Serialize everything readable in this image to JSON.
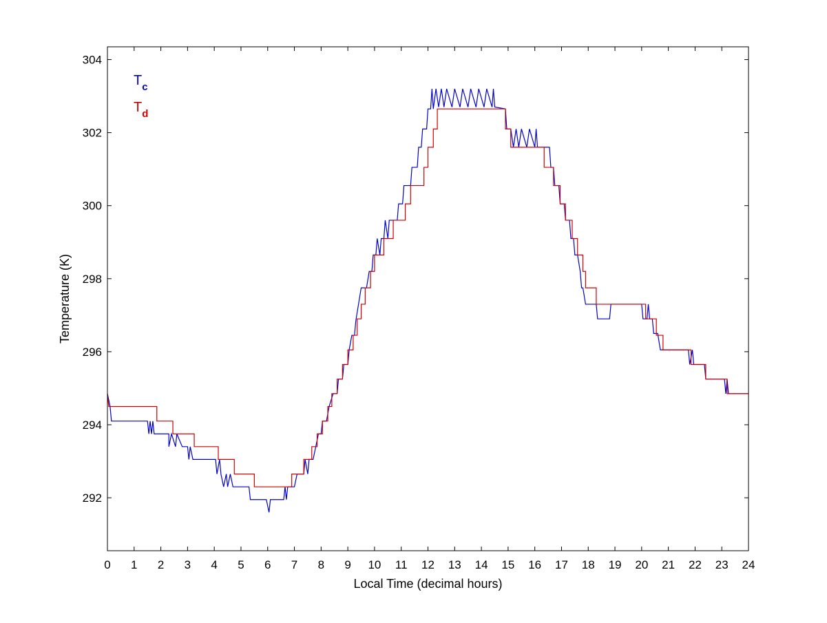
{
  "chart_data": {
    "type": "line",
    "xlabel": "Local Time (decimal hours)",
    "ylabel": "Temperature (K)",
    "xlim": [
      0,
      24
    ],
    "ylim": [
      290.55,
      304.35
    ],
    "x_ticks": [
      0,
      1,
      2,
      3,
      4,
      5,
      6,
      7,
      8,
      9,
      10,
      11,
      12,
      13,
      14,
      15,
      16,
      17,
      18,
      19,
      20,
      21,
      22,
      23,
      24
    ],
    "y_ticks": [
      292,
      294,
      296,
      298,
      300,
      302,
      304
    ],
    "grid": false,
    "legend_position": "top-left",
    "series": [
      {
        "name": "T",
        "subscript": "c",
        "color": "#0000cc",
        "style": "stepped, noisy",
        "points": [
          [
            0,
            294.85
          ],
          [
            0.1,
            294.5
          ],
          [
            0.15,
            294.1
          ],
          [
            1.5,
            294.1
          ],
          [
            1.55,
            293.75
          ],
          [
            1.6,
            294.1
          ],
          [
            1.65,
            293.75
          ],
          [
            1.7,
            294.1
          ],
          [
            1.75,
            293.75
          ],
          [
            2.3,
            293.75
          ],
          [
            2.3,
            293.4
          ],
          [
            2.4,
            293.75
          ],
          [
            2.55,
            293.4
          ],
          [
            2.6,
            293.75
          ],
          [
            2.8,
            293.4
          ],
          [
            3.0,
            293.4
          ],
          [
            3.05,
            293.05
          ],
          [
            3.1,
            293.4
          ],
          [
            3.2,
            293.05
          ],
          [
            4.05,
            293.05
          ],
          [
            4.1,
            292.65
          ],
          [
            4.2,
            293.05
          ],
          [
            4.25,
            292.65
          ],
          [
            4.35,
            292.3
          ],
          [
            4.45,
            292.65
          ],
          [
            4.5,
            292.3
          ],
          [
            4.6,
            292.65
          ],
          [
            4.7,
            292.3
          ],
          [
            5.3,
            292.3
          ],
          [
            5.35,
            291.95
          ],
          [
            5.95,
            291.95
          ],
          [
            6.05,
            291.6
          ],
          [
            6.1,
            291.95
          ],
          [
            6.6,
            291.95
          ],
          [
            6.65,
            292.3
          ],
          [
            6.7,
            291.95
          ],
          [
            6.75,
            292.3
          ],
          [
            7.0,
            292.3
          ],
          [
            7.1,
            292.65
          ],
          [
            7.35,
            292.65
          ],
          [
            7.4,
            293.05
          ],
          [
            7.5,
            292.65
          ],
          [
            7.55,
            293.05
          ],
          [
            7.7,
            293.05
          ],
          [
            7.8,
            293.4
          ],
          [
            7.9,
            293.75
          ],
          [
            8.0,
            293.75
          ],
          [
            8.05,
            294.1
          ],
          [
            8.2,
            294.1
          ],
          [
            8.3,
            294.5
          ],
          [
            8.45,
            294.85
          ],
          [
            8.6,
            294.85
          ],
          [
            8.65,
            295.25
          ],
          [
            8.8,
            295.25
          ],
          [
            8.85,
            295.65
          ],
          [
            9.0,
            295.65
          ],
          [
            9.05,
            296.05
          ],
          [
            9.15,
            296.45
          ],
          [
            9.25,
            296.45
          ],
          [
            9.3,
            296.85
          ],
          [
            9.4,
            297.3
          ],
          [
            9.5,
            297.75
          ],
          [
            9.7,
            297.75
          ],
          [
            9.8,
            298.2
          ],
          [
            9.9,
            298.2
          ],
          [
            9.95,
            298.65
          ],
          [
            10.05,
            298.65
          ],
          [
            10.1,
            299.1
          ],
          [
            10.2,
            298.65
          ],
          [
            10.25,
            299.1
          ],
          [
            10.35,
            299.1
          ],
          [
            10.4,
            299.6
          ],
          [
            10.5,
            299.1
          ],
          [
            10.55,
            299.6
          ],
          [
            10.85,
            299.6
          ],
          [
            10.9,
            300.05
          ],
          [
            11.05,
            300.05
          ],
          [
            11.1,
            300.55
          ],
          [
            11.35,
            300.55
          ],
          [
            11.4,
            301.05
          ],
          [
            11.6,
            301.05
          ],
          [
            11.65,
            301.6
          ],
          [
            11.75,
            301.6
          ],
          [
            11.8,
            302.1
          ],
          [
            11.95,
            302.1
          ],
          [
            12.0,
            302.65
          ],
          [
            12.1,
            302.65
          ],
          [
            12.15,
            303.2
          ],
          [
            12.2,
            302.65
          ],
          [
            12.3,
            303.2
          ],
          [
            12.4,
            302.7
          ],
          [
            12.5,
            303.2
          ],
          [
            12.6,
            302.7
          ],
          [
            12.7,
            303.2
          ],
          [
            12.9,
            302.7
          ],
          [
            13.0,
            303.2
          ],
          [
            13.2,
            302.7
          ],
          [
            13.3,
            303.2
          ],
          [
            13.5,
            302.7
          ],
          [
            13.6,
            303.2
          ],
          [
            13.8,
            302.7
          ],
          [
            13.9,
            303.2
          ],
          [
            14.1,
            302.7
          ],
          [
            14.2,
            303.2
          ],
          [
            14.4,
            302.7
          ],
          [
            14.45,
            303.2
          ],
          [
            14.5,
            302.7
          ],
          [
            14.9,
            302.65
          ],
          [
            14.95,
            302.1
          ],
          [
            15.1,
            302.1
          ],
          [
            15.2,
            301.6
          ],
          [
            15.3,
            302.1
          ],
          [
            15.4,
            301.6
          ],
          [
            15.5,
            302.1
          ],
          [
            15.7,
            301.6
          ],
          [
            15.8,
            302.1
          ],
          [
            16.0,
            301.6
          ],
          [
            16.05,
            302.1
          ],
          [
            16.1,
            301.6
          ],
          [
            16.55,
            301.6
          ],
          [
            16.6,
            301.05
          ],
          [
            16.7,
            301.05
          ],
          [
            16.75,
            300.55
          ],
          [
            16.9,
            300.55
          ],
          [
            16.95,
            300.05
          ],
          [
            17.1,
            300.05
          ],
          [
            17.15,
            299.6
          ],
          [
            17.3,
            299.6
          ],
          [
            17.35,
            299.1
          ],
          [
            17.45,
            299.1
          ],
          [
            17.5,
            298.65
          ],
          [
            17.6,
            298.65
          ],
          [
            17.7,
            298.2
          ],
          [
            17.75,
            297.75
          ],
          [
            17.8,
            297.75
          ],
          [
            17.9,
            297.3
          ],
          [
            18.3,
            297.3
          ],
          [
            18.35,
            296.9
          ],
          [
            18.8,
            296.9
          ],
          [
            18.85,
            297.3
          ],
          [
            20.0,
            297.3
          ],
          [
            20.05,
            296.9
          ],
          [
            20.2,
            296.9
          ],
          [
            20.25,
            297.3
          ],
          [
            20.3,
            296.9
          ],
          [
            20.4,
            296.9
          ],
          [
            20.45,
            296.5
          ],
          [
            20.6,
            296.5
          ],
          [
            20.7,
            296.05
          ],
          [
            21.75,
            296.05
          ],
          [
            21.8,
            295.65
          ],
          [
            21.9,
            296.05
          ],
          [
            21.95,
            295.65
          ],
          [
            22.35,
            295.65
          ],
          [
            22.4,
            295.25
          ],
          [
            23.1,
            295.25
          ],
          [
            23.15,
            294.85
          ],
          [
            23.2,
            295.25
          ],
          [
            23.25,
            294.85
          ],
          [
            24,
            294.85
          ]
        ]
      },
      {
        "name": "T",
        "subscript": "d",
        "color": "#cc0000",
        "style": "stepped",
        "points": [
          [
            0,
            294.85
          ],
          [
            0.05,
            294.5
          ],
          [
            1.85,
            294.5
          ],
          [
            1.85,
            294.1
          ],
          [
            2.45,
            294.1
          ],
          [
            2.45,
            293.75
          ],
          [
            3.25,
            293.75
          ],
          [
            3.25,
            293.4
          ],
          [
            4.15,
            293.4
          ],
          [
            4.15,
            293.05
          ],
          [
            4.75,
            293.05
          ],
          [
            4.75,
            292.65
          ],
          [
            5.5,
            292.65
          ],
          [
            5.5,
            292.3
          ],
          [
            6.9,
            292.3
          ],
          [
            6.9,
            292.65
          ],
          [
            7.35,
            292.65
          ],
          [
            7.35,
            293.05
          ],
          [
            7.65,
            293.05
          ],
          [
            7.65,
            293.4
          ],
          [
            7.85,
            293.4
          ],
          [
            7.85,
            293.75
          ],
          [
            8.05,
            293.75
          ],
          [
            8.05,
            294.1
          ],
          [
            8.25,
            294.1
          ],
          [
            8.25,
            294.5
          ],
          [
            8.4,
            294.5
          ],
          [
            8.4,
            294.85
          ],
          [
            8.6,
            294.85
          ],
          [
            8.6,
            295.25
          ],
          [
            8.8,
            295.25
          ],
          [
            8.8,
            295.65
          ],
          [
            9.0,
            295.65
          ],
          [
            9.0,
            296.05
          ],
          [
            9.2,
            296.05
          ],
          [
            9.2,
            296.45
          ],
          [
            9.35,
            296.45
          ],
          [
            9.35,
            296.9
          ],
          [
            9.5,
            296.9
          ],
          [
            9.5,
            297.3
          ],
          [
            9.65,
            297.3
          ],
          [
            9.65,
            297.75
          ],
          [
            9.85,
            297.75
          ],
          [
            9.85,
            298.2
          ],
          [
            10.0,
            298.2
          ],
          [
            10.0,
            298.65
          ],
          [
            10.35,
            298.65
          ],
          [
            10.35,
            299.1
          ],
          [
            10.7,
            299.1
          ],
          [
            10.7,
            299.6
          ],
          [
            11.15,
            299.6
          ],
          [
            11.15,
            300.05
          ],
          [
            11.35,
            300.05
          ],
          [
            11.35,
            300.55
          ],
          [
            11.85,
            300.55
          ],
          [
            11.85,
            301.05
          ],
          [
            12.0,
            301.05
          ],
          [
            12.0,
            301.6
          ],
          [
            12.2,
            301.6
          ],
          [
            12.2,
            302.1
          ],
          [
            12.35,
            302.1
          ],
          [
            12.35,
            302.65
          ],
          [
            14.9,
            302.65
          ],
          [
            14.9,
            302.1
          ],
          [
            15.1,
            302.1
          ],
          [
            15.1,
            301.6
          ],
          [
            16.35,
            301.6
          ],
          [
            16.35,
            301.05
          ],
          [
            16.7,
            301.05
          ],
          [
            16.7,
            300.55
          ],
          [
            16.95,
            300.55
          ],
          [
            16.95,
            300.05
          ],
          [
            17.15,
            300.05
          ],
          [
            17.15,
            299.6
          ],
          [
            17.4,
            299.6
          ],
          [
            17.4,
            299.1
          ],
          [
            17.6,
            299.1
          ],
          [
            17.6,
            298.65
          ],
          [
            17.8,
            298.65
          ],
          [
            17.8,
            298.2
          ],
          [
            17.9,
            298.2
          ],
          [
            17.9,
            297.75
          ],
          [
            18.3,
            297.75
          ],
          [
            18.3,
            297.3
          ],
          [
            20.15,
            297.3
          ],
          [
            20.15,
            296.9
          ],
          [
            20.55,
            296.9
          ],
          [
            20.55,
            296.45
          ],
          [
            20.8,
            296.45
          ],
          [
            20.8,
            296.05
          ],
          [
            21.85,
            296.05
          ],
          [
            21.85,
            295.65
          ],
          [
            22.4,
            295.65
          ],
          [
            22.4,
            295.25
          ],
          [
            23.2,
            295.25
          ],
          [
            23.2,
            294.85
          ],
          [
            24,
            294.85
          ]
        ]
      }
    ]
  }
}
